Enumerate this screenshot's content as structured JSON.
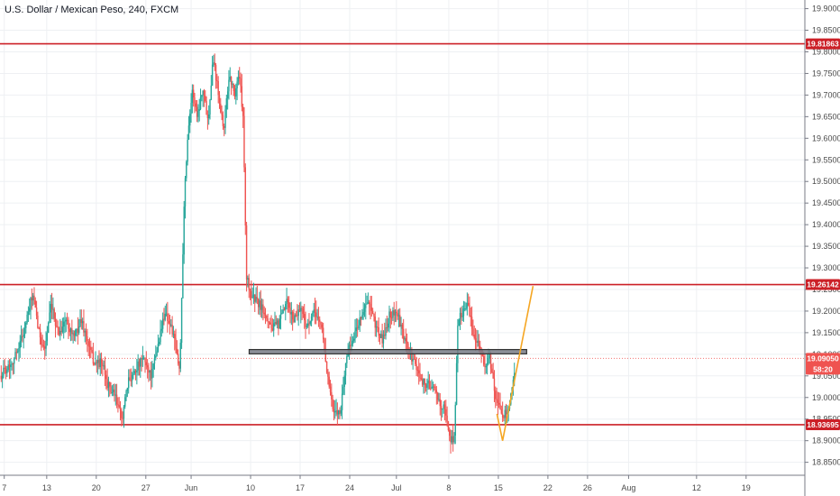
{
  "chart_data": {
    "type": "candlestick",
    "title": "U.S. Dollar / Mexican Peso, 240, FXCM",
    "ylim": [
      18.82,
      19.92
    ],
    "y_ticks": [
      "19.90000",
      "19.85000",
      "19.80000",
      "19.75000",
      "19.70000",
      "19.65000",
      "19.60000",
      "19.55000",
      "19.50000",
      "19.45000",
      "19.40000",
      "19.35000",
      "19.30000",
      "19.25000",
      "19.20000",
      "19.15000",
      "19.10000",
      "19.05000",
      "19.00000",
      "18.95000",
      "18.90000",
      "18.85000"
    ],
    "x_ticks": [
      {
        "label": "7",
        "t": 0.6
      },
      {
        "label": "13",
        "t": 6.6
      },
      {
        "label": "20",
        "t": 13.6
      },
      {
        "label": "27",
        "t": 20.6
      },
      {
        "label": "Jun",
        "t": 27.0
      },
      {
        "label": "10",
        "t": 35.4
      },
      {
        "label": "17",
        "t": 42.4
      },
      {
        "label": "24",
        "t": 49.4
      },
      {
        "label": "Jul",
        "t": 56.0
      },
      {
        "label": "8",
        "t": 63.4
      },
      {
        "label": "15",
        "t": 70.4
      },
      {
        "label": "22",
        "t": 77.4
      },
      {
        "label": "26",
        "t": 83.0
      },
      {
        "label": "Aug",
        "t": 88.8
      },
      {
        "label": "12",
        "t": 98.4
      },
      {
        "label": "19",
        "t": 105.4
      }
    ],
    "x_range": [
      0,
      113.7
    ],
    "levels": [
      {
        "name": "resistance-top",
        "value": 19.81863,
        "label": "19.81863",
        "color": "#cc2027"
      },
      {
        "name": "resistance-mid",
        "value": 19.26142,
        "label": "19.26142",
        "color": "#cc2027"
      },
      {
        "name": "support-bottom",
        "value": 18.93695,
        "label": "18.93695",
        "color": "#cc2027"
      }
    ],
    "current_price": {
      "value": 19.0905,
      "label": "19.09050",
      "countdown": "58:20",
      "color": "#ef5350"
    },
    "zone": {
      "t_start": 35.2,
      "t_end": 74.4,
      "y_top": 19.111,
      "y_bottom": 19.101,
      "color": "#787b86"
    },
    "projection": {
      "color": "#f5a623",
      "points": [
        [
          70.2,
          18.962
        ],
        [
          71.0,
          18.9
        ],
        [
          75.3,
          19.258
        ]
      ]
    },
    "colors": {
      "up": "#26a69a",
      "down": "#ef5350",
      "grid": "#eef0f3",
      "axis": "#787b86"
    },
    "waypoints": [
      [
        0,
        19.05
      ],
      [
        2,
        19.09
      ],
      [
        3.5,
        19.16
      ],
      [
        4.6,
        19.24
      ],
      [
        5.5,
        19.15
      ],
      [
        6.3,
        19.11
      ],
      [
        7.2,
        19.21
      ],
      [
        8.3,
        19.15
      ],
      [
        9.3,
        19.18
      ],
      [
        10.5,
        19.14
      ],
      [
        11.5,
        19.18
      ],
      [
        12.5,
        19.12
      ],
      [
        13.3,
        19.08
      ],
      [
        14.4,
        19.08
      ],
      [
        15.2,
        19.03
      ],
      [
        16.3,
        19.0
      ],
      [
        17.2,
        18.95
      ],
      [
        18.2,
        19.04
      ],
      [
        19.3,
        19.07
      ],
      [
        20.3,
        19.09
      ],
      [
        21.4,
        19.05
      ],
      [
        22.3,
        19.12
      ],
      [
        23.3,
        19.2
      ],
      [
        24.4,
        19.15
      ],
      [
        25.4,
        19.06
      ],
      [
        26.0,
        19.45
      ],
      [
        26.6,
        19.63
      ],
      [
        27.2,
        19.71
      ],
      [
        27.9,
        19.65
      ],
      [
        28.6,
        19.72
      ],
      [
        29.4,
        19.64
      ],
      [
        30.1,
        19.79
      ],
      [
        30.9,
        19.7
      ],
      [
        31.6,
        19.62
      ],
      [
        32.4,
        19.75
      ],
      [
        33.1,
        19.7
      ],
      [
        33.8,
        19.75
      ],
      [
        34.4,
        19.63
      ],
      [
        34.8,
        19.28
      ],
      [
        35.4,
        19.24
      ],
      [
        36.4,
        19.22
      ],
      [
        37.4,
        19.2
      ],
      [
        38.4,
        19.16
      ],
      [
        39.4,
        19.17
      ],
      [
        40.5,
        19.22
      ],
      [
        41.4,
        19.18
      ],
      [
        42.5,
        19.21
      ],
      [
        43.4,
        19.16
      ],
      [
        44.5,
        19.2
      ],
      [
        45.5,
        19.16
      ],
      [
        46.2,
        19.06
      ],
      [
        47.1,
        18.96
      ],
      [
        48.1,
        18.97
      ],
      [
        49.0,
        19.1
      ],
      [
        50.0,
        19.14
      ],
      [
        51.0,
        19.19
      ],
      [
        52.0,
        19.22
      ],
      [
        53.0,
        19.17
      ],
      [
        54.0,
        19.13
      ],
      [
        55.0,
        19.19
      ],
      [
        56.0,
        19.2
      ],
      [
        57.0,
        19.14
      ],
      [
        58.0,
        19.1
      ],
      [
        59.0,
        19.06
      ],
      [
        60.0,
        19.03
      ],
      [
        61.0,
        19.03
      ],
      [
        62.0,
        18.99
      ],
      [
        62.9,
        18.97
      ],
      [
        63.6,
        18.9
      ],
      [
        64.2,
        18.91
      ],
      [
        64.7,
        19.18
      ],
      [
        65.4,
        19.2
      ],
      [
        66.0,
        19.22
      ],
      [
        66.8,
        19.15
      ],
      [
        67.6,
        19.13
      ],
      [
        68.4,
        19.07
      ],
      [
        69.2,
        19.09
      ],
      [
        70.1,
        18.99
      ],
      [
        70.9,
        18.96
      ],
      [
        71.8,
        18.97
      ],
      [
        72.4,
        19.02
      ],
      [
        72.8,
        19.09
      ]
    ]
  }
}
